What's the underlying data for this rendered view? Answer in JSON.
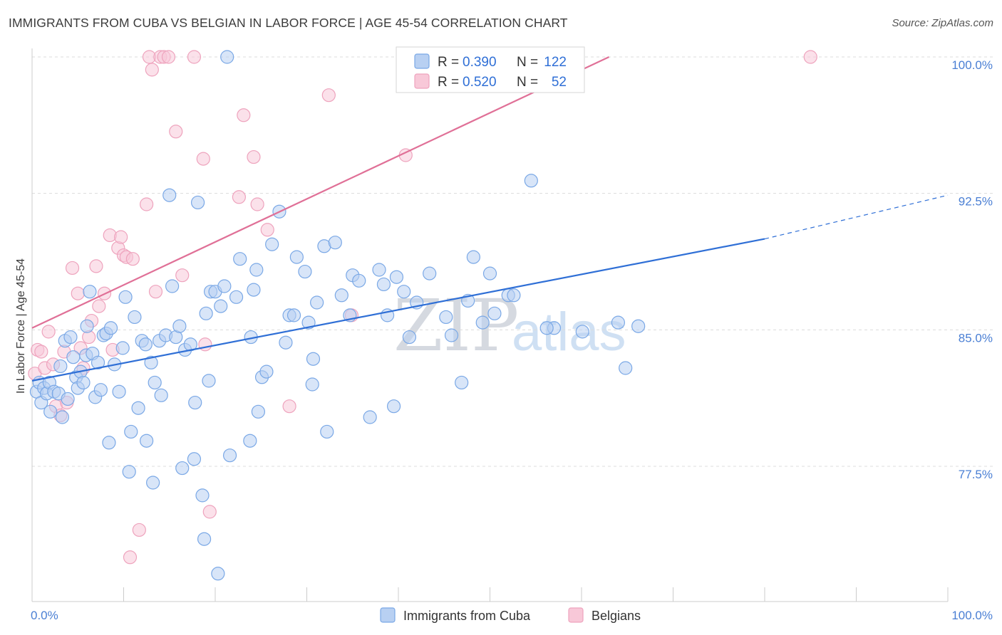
{
  "header": {
    "title": "IMMIGRANTS FROM CUBA VS BELGIAN IN LABOR FORCE | AGE 45-54 CORRELATION CHART",
    "source": "Source: ZipAtlas.com"
  },
  "watermark": {
    "zip": "ZIP",
    "atlas": "atlas"
  },
  "chart_data": {
    "type": "scatter",
    "ylabel": "In Labor Force | Age 45-54",
    "xlim": [
      0,
      100
    ],
    "ylim": [
      71,
      100.5
    ],
    "x_tick_labels": [
      {
        "value": 0,
        "label": "0.0%"
      },
      {
        "value": 100,
        "label": "100.0%"
      }
    ],
    "y_ticks": [
      {
        "value": 77.5,
        "label": "77.5%"
      },
      {
        "value": 85.0,
        "label": "85.0%"
      },
      {
        "value": 92.5,
        "label": "92.5%"
      },
      {
        "value": 100.0,
        "label": "100.0%"
      }
    ],
    "grid": "horizontal dashed",
    "legend_position": "top-center",
    "series": [
      {
        "name": "Immigrants from Cuba",
        "color": "#7aa8e6",
        "fill": "#b8d0f2",
        "line_color": "#2f6fd6",
        "R": "0.390",
        "N": "122",
        "trend": {
          "x0": 0,
          "y0": 82.2,
          "x1": 80,
          "y1": 90.0,
          "dash_to_x": 100,
          "dash_to_y": 92.4
        },
        "points": [
          [
            0.5,
            81.6
          ],
          [
            0.8,
            82.1
          ],
          [
            1.0,
            81.0
          ],
          [
            1.3,
            81.8
          ],
          [
            1.6,
            81.5
          ],
          [
            1.9,
            82.1
          ],
          [
            2.0,
            80.5
          ],
          [
            2.4,
            81.6
          ],
          [
            2.9,
            81.5
          ],
          [
            3.1,
            83.0
          ],
          [
            3.3,
            80.2
          ],
          [
            3.6,
            84.4
          ],
          [
            3.9,
            81.2
          ],
          [
            4.2,
            84.6
          ],
          [
            4.5,
            83.5
          ],
          [
            4.8,
            82.4
          ],
          [
            5.0,
            81.8
          ],
          [
            5.3,
            82.7
          ],
          [
            5.6,
            82.1
          ],
          [
            5.9,
            83.6
          ],
          [
            6.0,
            85.2
          ],
          [
            6.3,
            87.1
          ],
          [
            6.6,
            83.7
          ],
          [
            6.9,
            81.3
          ],
          [
            7.2,
            83.2
          ],
          [
            7.5,
            81.7
          ],
          [
            7.8,
            84.7
          ],
          [
            8.1,
            84.8
          ],
          [
            8.4,
            78.8
          ],
          [
            8.6,
            85.1
          ],
          [
            9.0,
            83.1
          ],
          [
            9.5,
            81.6
          ],
          [
            9.9,
            84.0
          ],
          [
            10.2,
            86.8
          ],
          [
            10.6,
            77.2
          ],
          [
            10.8,
            79.4
          ],
          [
            11.2,
            85.7
          ],
          [
            11.6,
            80.7
          ],
          [
            12.0,
            84.4
          ],
          [
            12.4,
            84.2
          ],
          [
            12.5,
            78.9
          ],
          [
            13.0,
            83.2
          ],
          [
            13.2,
            76.6
          ],
          [
            13.4,
            82.1
          ],
          [
            13.9,
            84.4
          ],
          [
            14.1,
            81.4
          ],
          [
            14.6,
            84.7
          ],
          [
            15.0,
            92.4
          ],
          [
            15.3,
            87.4
          ],
          [
            15.7,
            84.6
          ],
          [
            16.1,
            85.2
          ],
          [
            16.4,
            77.4
          ],
          [
            16.7,
            83.9
          ],
          [
            17.3,
            84.2
          ],
          [
            17.7,
            77.9
          ],
          [
            17.8,
            81.0
          ],
          [
            18.1,
            92.0
          ],
          [
            18.6,
            75.9
          ],
          [
            18.8,
            73.5
          ],
          [
            19.0,
            85.9
          ],
          [
            19.3,
            82.2
          ],
          [
            19.5,
            87.1
          ],
          [
            20.0,
            87.1
          ],
          [
            20.3,
            71.6
          ],
          [
            20.6,
            86.3
          ],
          [
            21.0,
            87.4
          ],
          [
            21.3,
            100.0
          ],
          [
            21.6,
            78.1
          ],
          [
            22.3,
            86.8
          ],
          [
            22.7,
            88.9
          ],
          [
            23.8,
            78.9
          ],
          [
            23.9,
            84.6
          ],
          [
            24.2,
            87.2
          ],
          [
            24.5,
            88.3
          ],
          [
            24.7,
            80.5
          ],
          [
            25.1,
            82.4
          ],
          [
            25.6,
            82.7
          ],
          [
            26.2,
            89.7
          ],
          [
            27.0,
            91.5
          ],
          [
            27.7,
            84.3
          ],
          [
            28.1,
            85.8
          ],
          [
            28.6,
            85.8
          ],
          [
            28.9,
            89.0
          ],
          [
            29.8,
            88.2
          ],
          [
            30.2,
            85.4
          ],
          [
            30.6,
            82.0
          ],
          [
            30.7,
            83.4
          ],
          [
            31.1,
            86.5
          ],
          [
            31.9,
            89.6
          ],
          [
            32.2,
            79.4
          ],
          [
            33.1,
            89.8
          ],
          [
            33.8,
            86.9
          ],
          [
            34.7,
            85.8
          ],
          [
            35.0,
            88.0
          ],
          [
            35.7,
            87.7
          ],
          [
            36.9,
            80.2
          ],
          [
            37.9,
            88.3
          ],
          [
            38.4,
            87.5
          ],
          [
            38.8,
            85.8
          ],
          [
            39.5,
            80.8
          ],
          [
            39.8,
            87.9
          ],
          [
            40.6,
            87.1
          ],
          [
            41.2,
            84.6
          ],
          [
            42.0,
            86.5
          ],
          [
            43.4,
            88.1
          ],
          [
            45.2,
            85.7
          ],
          [
            45.8,
            84.7
          ],
          [
            46.9,
            82.1
          ],
          [
            47.6,
            86.6
          ],
          [
            48.2,
            89.0
          ],
          [
            49.2,
            85.4
          ],
          [
            50.0,
            88.1
          ],
          [
            50.5,
            85.9
          ],
          [
            52.0,
            86.9
          ],
          [
            52.6,
            86.9
          ],
          [
            54.5,
            93.2
          ],
          [
            57.0,
            85.1
          ],
          [
            60.1,
            84.9
          ],
          [
            64.0,
            85.4
          ],
          [
            64.8,
            82.9
          ],
          [
            66.2,
            85.2
          ],
          [
            56.2,
            85.1
          ]
        ]
      },
      {
        "name": "Belgians",
        "color": "#eea3bd",
        "fill": "#f8c8d8",
        "line_color": "#e07097",
        "R": "0.520",
        "N": "52",
        "trend": {
          "x0": 0,
          "y0": 85.1,
          "x1": 63,
          "y1": 100.0
        },
        "points": [
          [
            0.3,
            82.6
          ],
          [
            0.6,
            83.9
          ],
          [
            1.0,
            83.8
          ],
          [
            1.4,
            82.9
          ],
          [
            1.8,
            84.9
          ],
          [
            2.3,
            83.1
          ],
          [
            2.6,
            80.8
          ],
          [
            3.1,
            80.3
          ],
          [
            3.5,
            83.8
          ],
          [
            3.8,
            81.0
          ],
          [
            4.4,
            88.4
          ],
          [
            5.0,
            87.0
          ],
          [
            5.3,
            84.0
          ],
          [
            5.6,
            82.9
          ],
          [
            6.2,
            84.6
          ],
          [
            6.5,
            85.5
          ],
          [
            7.0,
            88.5
          ],
          [
            7.3,
            86.3
          ],
          [
            7.9,
            87.0
          ],
          [
            8.5,
            90.2
          ],
          [
            8.8,
            83.9
          ],
          [
            9.4,
            89.5
          ],
          [
            9.7,
            90.1
          ],
          [
            10.0,
            89.1
          ],
          [
            10.3,
            89.0
          ],
          [
            10.7,
            72.5
          ],
          [
            11.0,
            88.9
          ],
          [
            11.7,
            74.0
          ],
          [
            12.5,
            91.9
          ],
          [
            12.8,
            100.0
          ],
          [
            13.1,
            99.3
          ],
          [
            13.5,
            87.1
          ],
          [
            14.0,
            100.0
          ],
          [
            14.4,
            100.0
          ],
          [
            14.9,
            100.0
          ],
          [
            15.7,
            95.9
          ],
          [
            16.4,
            88.0
          ],
          [
            17.7,
            100.0
          ],
          [
            18.7,
            94.4
          ],
          [
            18.9,
            84.2
          ],
          [
            19.4,
            75.0
          ],
          [
            22.6,
            92.3
          ],
          [
            23.1,
            96.8
          ],
          [
            24.2,
            94.5
          ],
          [
            24.6,
            91.9
          ],
          [
            25.7,
            90.5
          ],
          [
            28.1,
            80.8
          ],
          [
            32.4,
            97.9
          ],
          [
            34.9,
            85.8
          ],
          [
            40.8,
            94.6
          ],
          [
            50.6,
            100.0
          ],
          [
            85.0,
            100.0
          ]
        ]
      }
    ]
  }
}
